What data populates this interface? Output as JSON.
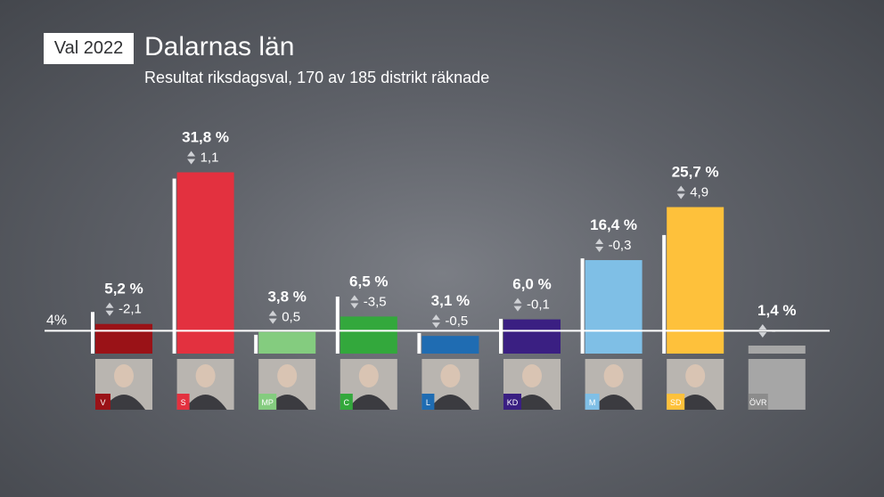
{
  "header": {
    "badge": "Val 2022",
    "title": "Dalarnas län",
    "subtitle": "Resultat riksdagsval, 170 av 185 distrikt räknade"
  },
  "chart_data": {
    "type": "bar",
    "threshold": {
      "value": 4,
      "label": "4%"
    },
    "categories": [
      "V",
      "S",
      "MP",
      "C",
      "L",
      "KD",
      "M",
      "SD",
      "ÖVR"
    ],
    "values": [
      5.2,
      31.8,
      3.8,
      6.5,
      3.1,
      6.0,
      16.4,
      25.7,
      1.4
    ],
    "value_labels": [
      "5,2 %",
      "31,8 %",
      "3,8 %",
      "6,5 %",
      "3,1 %",
      "6,0 %",
      "16,4 %",
      "25,7 %",
      "1,4 %"
    ],
    "change_labels": [
      "-2,1",
      "1,1",
      "0,5",
      "-3,5",
      "-0,5",
      "-0,1",
      "-0,3",
      "4,9",
      "-"
    ],
    "previous_values": [
      7.3,
      30.7,
      3.3,
      10.0,
      3.6,
      6.1,
      16.7,
      20.8,
      null
    ],
    "colors": [
      "#9a1217",
      "#e3313f",
      "#84cc7f",
      "#33a83c",
      "#1f6cb2",
      "#3a1f82",
      "#7fbfe6",
      "#fec13b",
      "#a6a6a6"
    ],
    "ylim": [
      0,
      31.8
    ]
  }
}
